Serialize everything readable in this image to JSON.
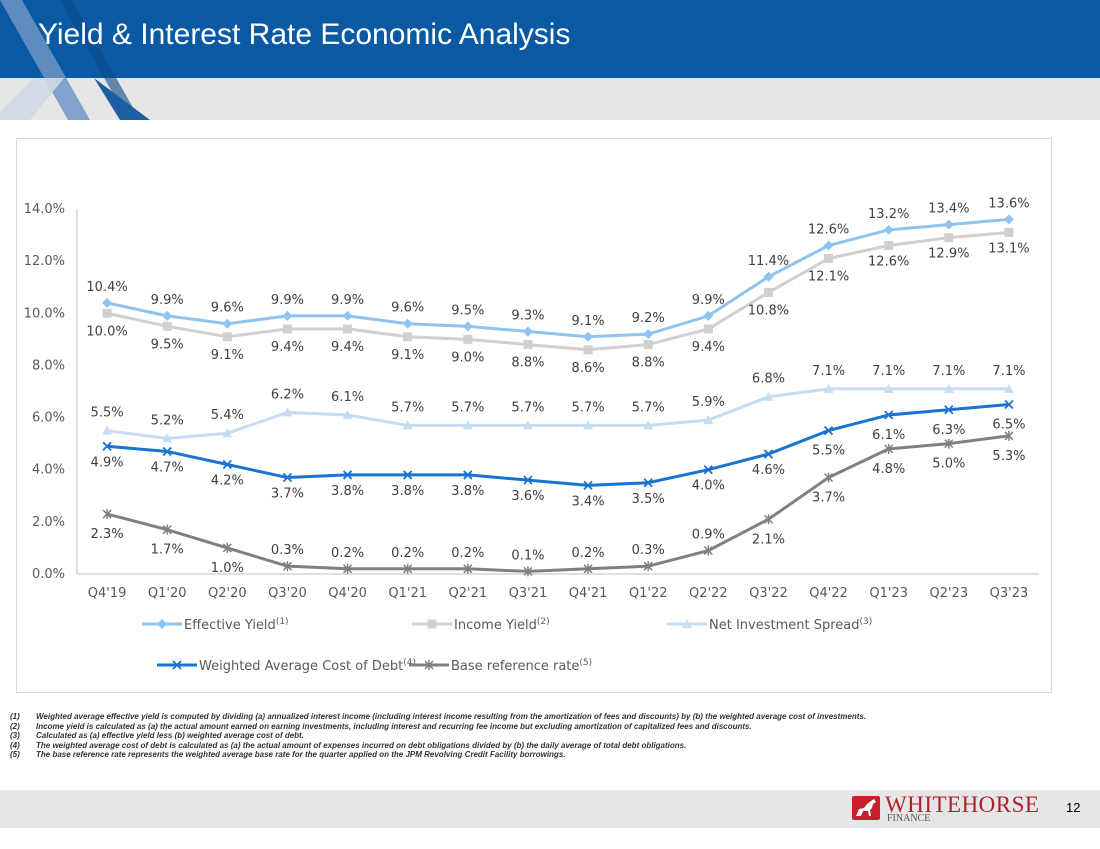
{
  "header": {
    "title": "Yield & Interest Rate Economic Analysis"
  },
  "colors": {
    "header_blue": "#0a5aa3",
    "band_gray": "#e6e6e6",
    "brand_red": "#b0202a"
  },
  "chart_data": {
    "type": "line",
    "categories": [
      "Q4'19",
      "Q1'20",
      "Q2'20",
      "Q3'20",
      "Q4'20",
      "Q1'21",
      "Q2'21",
      "Q3'21",
      "Q4'21",
      "Q1'22",
      "Q2'22",
      "Q3'22",
      "Q4'22",
      "Q1'23",
      "Q2'23",
      "Q3'23"
    ],
    "ylim": [
      0,
      14
    ],
    "yticks": [
      0,
      2,
      4,
      6,
      8,
      10,
      12,
      14
    ],
    "ytick_labels": [
      "0.0%",
      "2.0%",
      "4.0%",
      "6.0%",
      "8.0%",
      "10.0%",
      "12.0%",
      "14.0%"
    ],
    "legend_position": "bottom",
    "series": [
      {
        "name": "Effective Yield",
        "sup": "(1)",
        "color": "#8fc3f0",
        "marker": "diamond",
        "values": [
          10.4,
          9.9,
          9.6,
          9.9,
          9.9,
          9.6,
          9.5,
          9.3,
          9.1,
          9.2,
          9.9,
          11.4,
          12.6,
          13.2,
          13.4,
          13.6
        ],
        "labels": [
          "10.4%",
          "9.9%",
          "9.6%",
          "9.9%",
          "9.9%",
          "9.6%",
          "9.5%",
          "9.3%",
          "9.1%",
          "9.2%",
          "9.9%",
          "11.4%",
          "12.6%",
          "13.2%",
          "13.4%",
          "13.6%"
        ]
      },
      {
        "name": "Income Yield",
        "sup": "(2)",
        "color": "#d0d0d0",
        "marker": "square",
        "values": [
          10.0,
          9.5,
          9.1,
          9.4,
          9.4,
          9.1,
          9.0,
          8.8,
          8.6,
          8.8,
          9.4,
          10.8,
          12.1,
          12.6,
          12.9,
          13.1
        ],
        "labels": [
          "10.0%",
          "9.5%",
          "9.1%",
          "9.4%",
          "9.4%",
          "9.1%",
          "9.0%",
          "8.8%",
          "8.6%",
          "8.8%",
          "9.4%",
          "10.8%",
          "12.1%",
          "12.6%",
          "12.9%",
          "13.1%"
        ]
      },
      {
        "name": "Net Investment Spread",
        "sup": "(3)",
        "color": "#c6dcf2",
        "marker": "triangle",
        "values": [
          5.5,
          5.2,
          5.4,
          6.2,
          6.1,
          5.7,
          5.7,
          5.7,
          5.7,
          5.7,
          5.9,
          6.8,
          7.1,
          7.1,
          7.1,
          7.1
        ],
        "labels": [
          "5.5%",
          "5.2%",
          "5.4%",
          "6.2%",
          "6.1%",
          "5.7%",
          "5.7%",
          "5.7%",
          "5.7%",
          "5.7%",
          "5.9%",
          "6.8%",
          "7.1%",
          "7.1%",
          "7.1%",
          "7.1%"
        ]
      },
      {
        "name": "Weighted Average Cost of Debt",
        "sup": "(4)",
        "color": "#1a73d0",
        "marker": "x",
        "values": [
          4.9,
          4.7,
          4.2,
          3.7,
          3.8,
          3.8,
          3.8,
          3.6,
          3.4,
          3.5,
          4.0,
          4.6,
          5.5,
          6.1,
          6.3,
          6.5
        ],
        "labels": [
          "4.9%",
          "4.7%",
          "4.2%",
          "3.7%",
          "3.8%",
          "3.8%",
          "3.8%",
          "3.6%",
          "3.4%",
          "3.5%",
          "4.0%",
          "4.6%",
          "5.5%",
          "6.1%",
          "6.3%",
          "6.5%"
        ]
      },
      {
        "name": "Base reference rate",
        "sup": "(5)",
        "color": "#808080",
        "marker": "star",
        "values": [
          2.3,
          1.7,
          1.0,
          0.3,
          0.2,
          0.2,
          0.2,
          0.1,
          0.2,
          0.3,
          0.9,
          2.1,
          3.7,
          4.8,
          5.0,
          5.3
        ],
        "labels": [
          "2.3%",
          "1.7%",
          "1.0%",
          "0.3%",
          "0.2%",
          "0.2%",
          "0.2%",
          "0.1%",
          "0.2%",
          "0.3%",
          "0.9%",
          "2.1%",
          "3.7%",
          "4.8%",
          "5.0%",
          "5.3%"
        ]
      }
    ]
  },
  "footnotes": [
    {
      "num": "(1)",
      "text": "Weighted average effective yield is computed by dividing (a) annualized interest income (including interest income resulting from the amortization of fees and discounts) by (b) the weighted average cost of investments."
    },
    {
      "num": "(2)",
      "text": "Income yield is calculated as (a) the actual amount earned on earning investments, including interest and recurring fee income but excluding amortization of capitalized fees and discounts."
    },
    {
      "num": "(3)",
      "text": "Calculated as (a) effective yield less (b) weighted average cost of debt."
    },
    {
      "num": "(4)",
      "text": "The weighted average cost of debt is calculated as (a) the actual amount of expenses incurred on debt obligations divided by (b) the daily average of total debt obligations."
    },
    {
      "num": "(5)",
      "text": "The base reference rate represents the weighted average base rate for the quarter applied on the JPM Revolving Credit Facility borrowings."
    }
  ],
  "logo": {
    "main": "WHITEHORSE",
    "sub": "FINANCE",
    "icon": "horse-icon"
  },
  "page_number": "12"
}
